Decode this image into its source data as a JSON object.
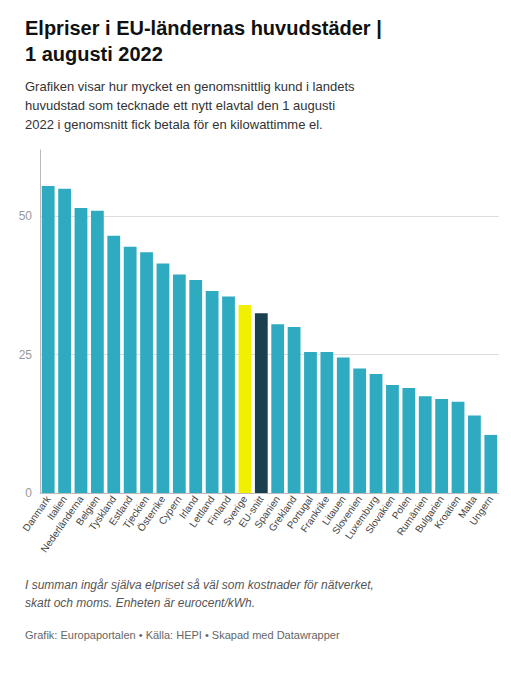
{
  "chart_data": {
    "type": "bar",
    "title": "Elpriser i EU-ländernas huvudstäder |\n1 augusti 2022",
    "subtitle": "Grafiken visar hur mycket en genomsnittlig kund i landets\nhuvudstad som tecknade ett nytt elavtal den 1 augusti\n2022 i genomsnitt fick betala för en kilowattimme el.",
    "annotations": [
      "I summan ingår själva elpriset så väl som kostnader för nätverket,",
      "skatt och moms. Enheten är eurocent/kWh.",
      "Grafik: Europaportalen • Källa: HEPI • Skapad med Datawrapper"
    ],
    "categories": [
      "Danmark",
      "Italien",
      "Nederländerna",
      "Belgien",
      "Tyskland",
      "Estland",
      "Tjeckien",
      "Österrike",
      "Cypern",
      "Irland",
      "Lettland",
      "Finland",
      "Sverige",
      "EU-snitt",
      "Spanien",
      "Grekland",
      "Portugal",
      "Frankrike",
      "Litauen",
      "Slovenien",
      "Luxemburg",
      "Slovakien",
      "Polen",
      "Rumänien",
      "Bulgarien",
      "Kroatien",
      "Malta",
      "Ungern"
    ],
    "values": [
      55.5,
      55.0,
      51.5,
      51.0,
      46.5,
      44.5,
      43.5,
      41.5,
      39.5,
      38.5,
      36.5,
      35.5,
      34.0,
      32.5,
      30.5,
      30.0,
      25.5,
      25.5,
      24.5,
      22.5,
      21.5,
      19.5,
      19.0,
      17.5,
      17.0,
      16.5,
      14.0,
      10.5
    ],
    "colors": [
      "#2eaac1",
      "#2eaac1",
      "#2eaac1",
      "#2eaac1",
      "#2eaac1",
      "#2eaac1",
      "#2eaac1",
      "#2eaac1",
      "#2eaac1",
      "#2eaac1",
      "#2eaac1",
      "#2eaac1",
      "#f0f000",
      "#1a3f4f",
      "#2eaac1",
      "#2eaac1",
      "#2eaac1",
      "#2eaac1",
      "#2eaac1",
      "#2eaac1",
      "#2eaac1",
      "#2eaac1",
      "#2eaac1",
      "#2eaac1",
      "#2eaac1",
      "#2eaac1",
      "#2eaac1",
      "#2eaac1"
    ],
    "ylim": [
      0,
      62
    ],
    "yticks": [
      0,
      25,
      50
    ],
    "grid": true
  }
}
